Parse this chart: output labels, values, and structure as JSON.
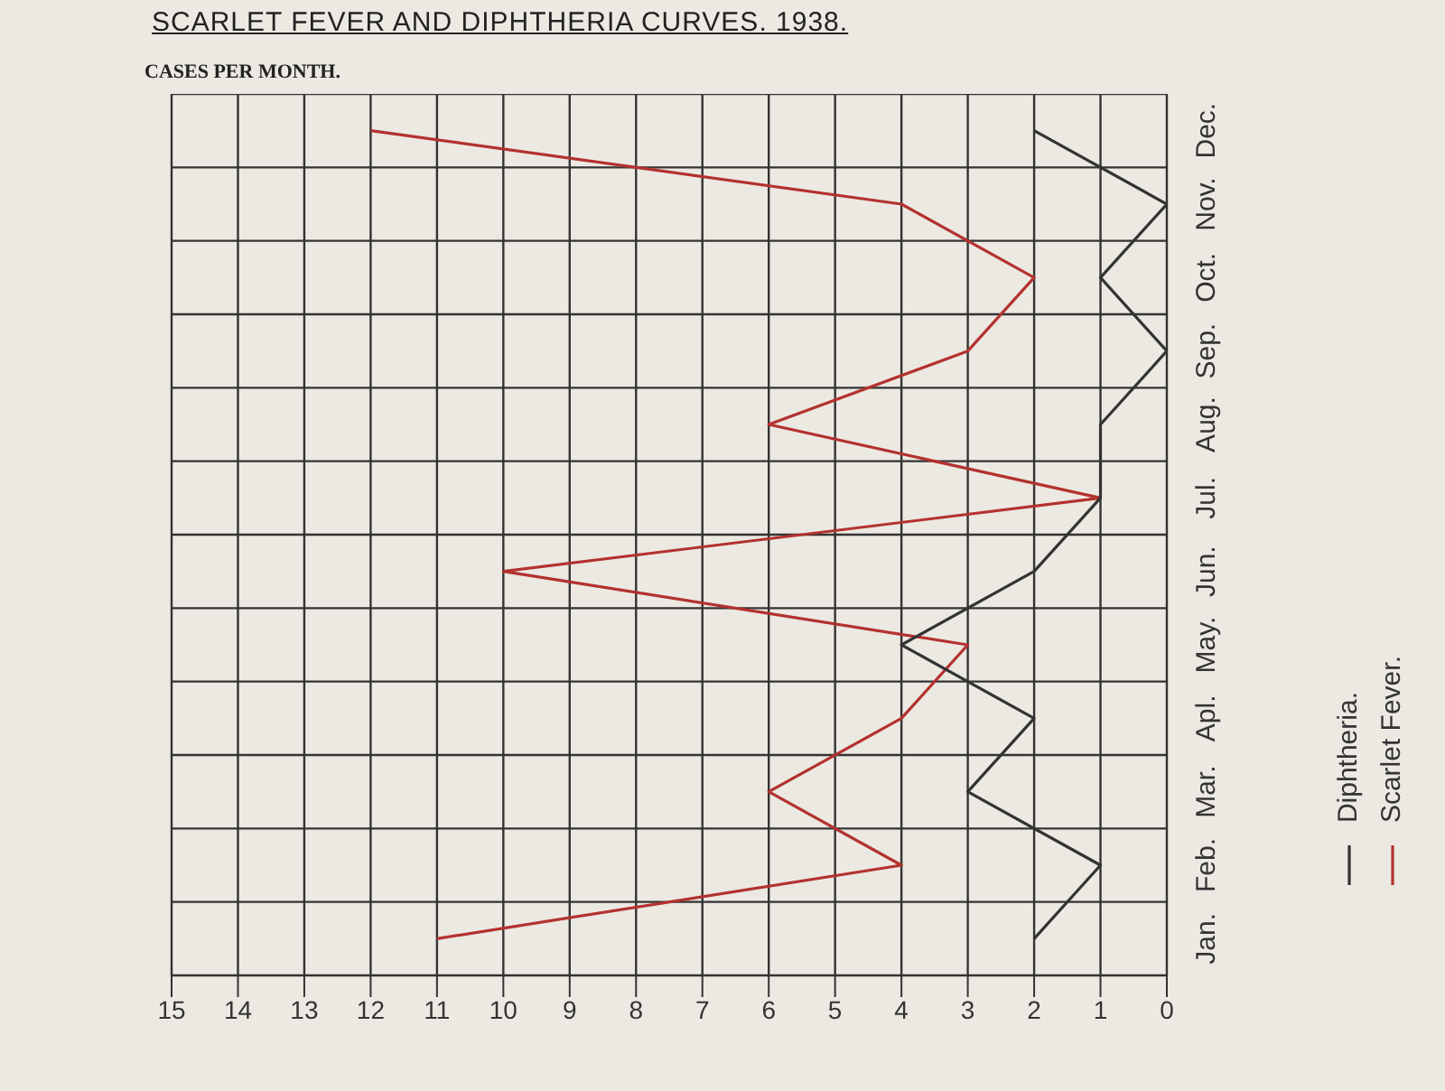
{
  "chart_data": {
    "type": "line",
    "title": "SCARLET FEVER AND DIPHTHERIA CURVES. 1938.",
    "ylabel": "CASES PER MONTH.",
    "orientation": "horizontal",
    "categories": [
      "Dec.",
      "Nov.",
      "Oct.",
      "Sep.",
      "Aug.",
      "Jul.",
      "Jun.",
      "May.",
      "Apl.",
      "Mar.",
      "Feb.",
      "Jan."
    ],
    "series": [
      {
        "name": "Scarlet Fever.",
        "color": "#b3322f",
        "values": [
          12,
          4,
          2,
          3,
          6,
          1,
          10,
          3,
          4,
          6,
          4,
          11
        ]
      },
      {
        "name": "Diphtheria.",
        "color": "#333333",
        "values": [
          2,
          0,
          1,
          0,
          1,
          1,
          2,
          4,
          2,
          3,
          1,
          2
        ]
      }
    ],
    "xlim": [
      15,
      0
    ],
    "xticks": [
      0,
      1,
      2,
      3,
      4,
      5,
      6,
      7,
      8,
      9,
      10,
      11,
      12,
      13,
      14,
      15
    ],
    "grid": true,
    "legend": "right",
    "marker": "none",
    "line_style": "solid"
  }
}
